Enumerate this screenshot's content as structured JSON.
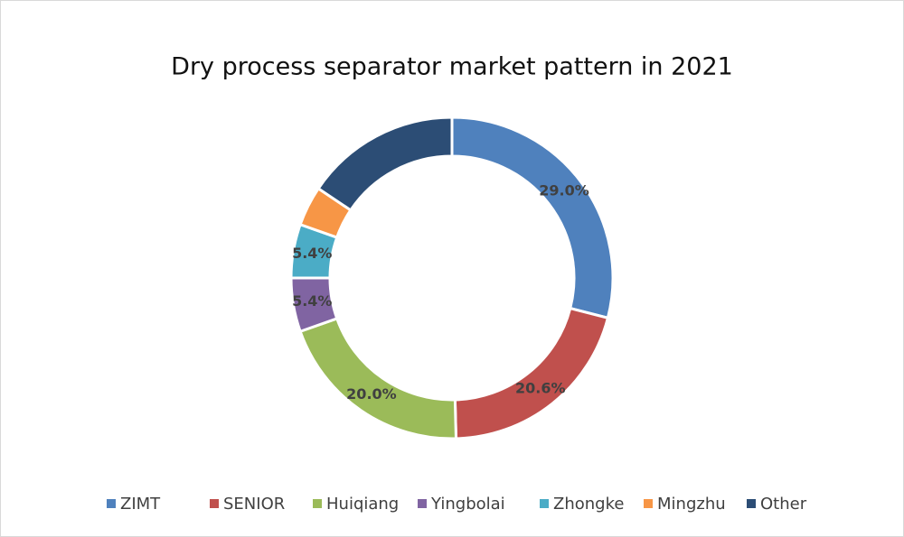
{
  "chart_data": {
    "type": "donut",
    "title": "Dry process separator market pattern in 2021",
    "categories": [
      "ZIMT",
      "SENIOR",
      "Huiqiang",
      "Yingbolai",
      "Zhongke",
      "Mingzhu",
      "Other"
    ],
    "values": [
      29.0,
      20.6,
      20.0,
      5.4,
      5.4,
      4.0,
      15.6
    ],
    "value_labels": [
      "29.0%",
      "20.6%",
      "20.0%",
      "5.4%",
      "5.4%",
      null,
      null
    ],
    "colors": [
      "#4f81bd",
      "#c0504d",
      "#9bbb59",
      "#8064a2",
      "#4bacc6",
      "#f79646",
      "#2c4d75"
    ],
    "legend": "bottom"
  }
}
